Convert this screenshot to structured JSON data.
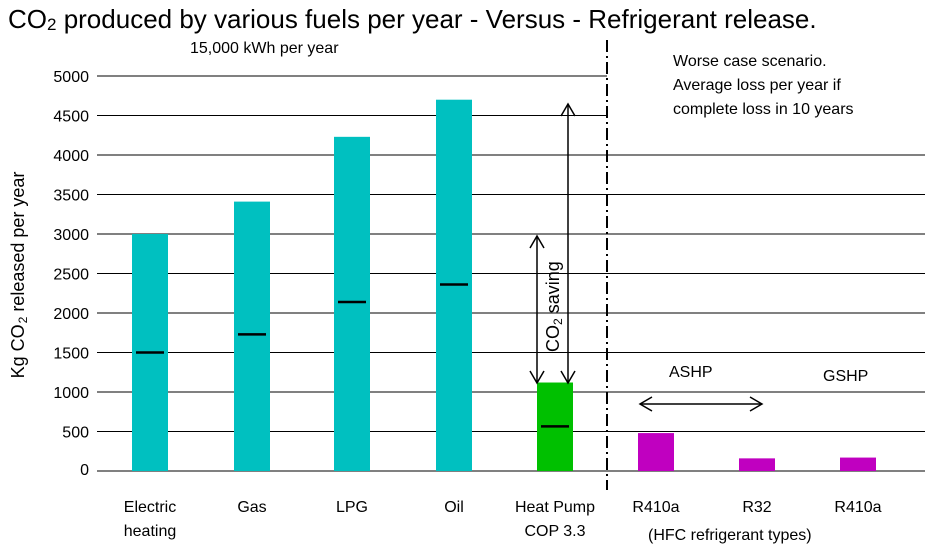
{
  "colors": {
    "fossil": "#00c0c0",
    "heat_pump": "#00c000",
    "refrigerant": "#c000c0",
    "grid": "#000000",
    "marker": "#000000"
  },
  "chart_data": {
    "type": "bar",
    "title_parts": [
      "CO",
      "2",
      " produced by various fuels per year  - Versus -  Refrigerant release."
    ],
    "subtitle": "15,000 kWh per year",
    "ylabel_parts": [
      "Kg CO",
      "2",
      " released per year"
    ],
    "xlabel": "",
    "ylim": [
      0,
      5000
    ],
    "yticks": [
      0,
      500,
      1000,
      1500,
      2000,
      2500,
      3000,
      3500,
      4000,
      4500,
      5000
    ],
    "ytick_labels": [
      "0",
      "500",
      "1000",
      "1500",
      "2000",
      "2500",
      "3000",
      "3500",
      "4000",
      "4500",
      "5000"
    ],
    "grid": true,
    "categories": [
      [
        "Electric",
        "heating"
      ],
      [
        "Gas"
      ],
      [
        "LPG"
      ],
      [
        "Oil"
      ],
      [
        "Heat Pump",
        "COP 3.3"
      ],
      [
        "R410a"
      ],
      [
        "R32"
      ],
      [
        "R410a"
      ]
    ],
    "values": [
      3000,
      3410,
      4230,
      4700,
      1120,
      480,
      160,
      170
    ],
    "midpoint_markers": [
      1500,
      1730,
      2140,
      2360,
      565,
      null,
      null,
      null
    ],
    "bar_colors": [
      "fossil",
      "fossil",
      "fossil",
      "fossil",
      "heat_pump",
      "refrigerant",
      "refrigerant",
      "refrigerant"
    ],
    "group_label": "(HFC refrigerant types)",
    "annotations": {
      "worst_case": [
        "Worse case scenario.",
        "Average loss per year if",
        "complete loss in 10 years"
      ],
      "co2_saving_parts": [
        "CO",
        "2",
        " saving"
      ],
      "ashp": "ASHP",
      "gshp": "GSHP"
    }
  }
}
